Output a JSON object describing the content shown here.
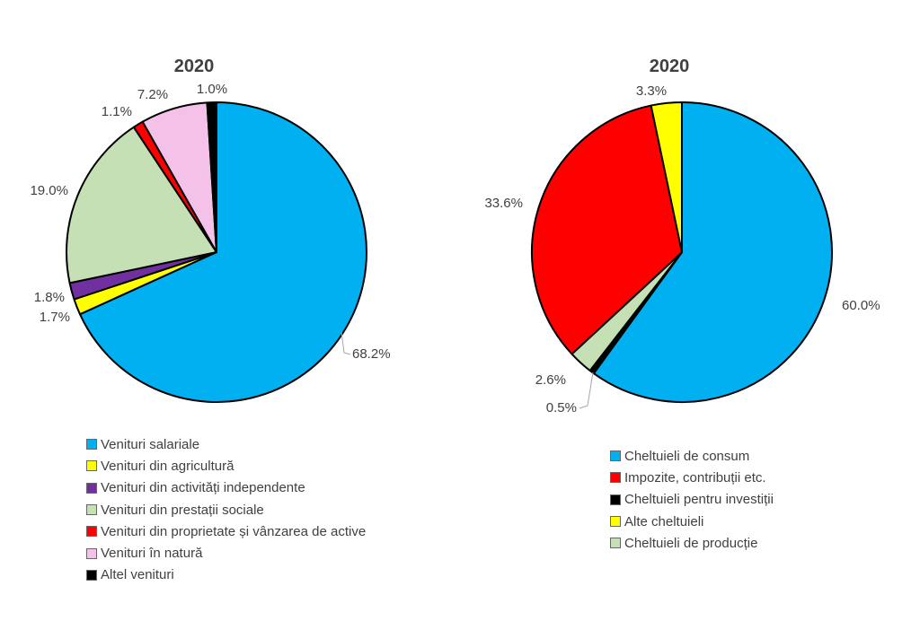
{
  "chart_data": [
    {
      "type": "pie",
      "title": "2020",
      "slices": [
        {
          "label": "Venituri salariale",
          "value": 68.2,
          "value_label": "68.2%",
          "color": "#00B0F0"
        },
        {
          "label": "Venituri din agricultură",
          "value": 1.7,
          "value_label": "1.7%",
          "color": "#FFFF00"
        },
        {
          "label": "Venituri din activități independente",
          "value": 1.8,
          "value_label": "1.8%",
          "color": "#7030A0"
        },
        {
          "label": "Venituri din prestații sociale",
          "value": 19.0,
          "value_label": "19.0%",
          "color": "#C5E0B4"
        },
        {
          "label": "Venituri din proprietate și vânzarea de active",
          "value": 1.1,
          "value_label": "1.1%",
          "color": "#FF0000"
        },
        {
          "label": "Venituri în natură",
          "value": 7.2,
          "value_label": "7.2%",
          "color": "#F4C2E8"
        },
        {
          "label": "Altel venituri",
          "value": 1.0,
          "value_label": "1.0%",
          "color": "#000000"
        }
      ],
      "legend_position": "bottom"
    },
    {
      "type": "pie",
      "title": "2020",
      "slices": [
        {
          "label": "Cheltuieli de consum",
          "value": 60.0,
          "value_label": "60.0%",
          "color": "#00B0F0"
        },
        {
          "label": "Cheltuieli pentru investiții",
          "value": 0.5,
          "value_label": "0.5%",
          "color": "#000000"
        },
        {
          "label": "Cheltuieli de producție",
          "value": 2.6,
          "value_label": "2.6%",
          "color": "#C5E0B4"
        },
        {
          "label": "Impozite, contribuții etc.",
          "value": 33.6,
          "value_label": "33.6%",
          "color": "#FF0000"
        },
        {
          "label": "Alte cheltuieli",
          "value": 3.3,
          "value_label": "3.3%",
          "color": "#FFFF00"
        }
      ],
      "legend": [
        {
          "label": "Cheltuieli de consum",
          "color": "#00B0F0"
        },
        {
          "label": "Impozite, contribuții etc.",
          "color": "#FF0000"
        },
        {
          "label": "Cheltuieli pentru investiții",
          "color": "#000000"
        },
        {
          "label": "Alte cheltuieli",
          "color": "#FFFF00"
        },
        {
          "label": "Cheltuieli de producție",
          "color": "#C5E0B4"
        }
      ],
      "legend_position": "bottom"
    }
  ]
}
